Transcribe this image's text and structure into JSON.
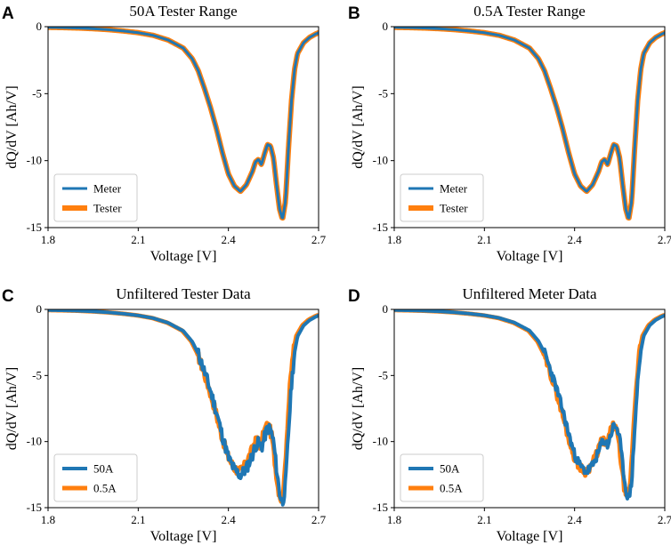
{
  "colors": {
    "blue": "#1f77b4",
    "orange": "#ff7f0e"
  },
  "chart_data": [
    {
      "panel": "A",
      "type": "line",
      "title": "50A Tester Range",
      "xlabel": "Voltage [V]",
      "ylabel": "dQ/dV [Ah/V]",
      "xlim": [
        1.8,
        2.7
      ],
      "ylim": [
        -15,
        0
      ],
      "xticks": [
        "1.8",
        "2.1",
        "2.4",
        "2.7"
      ],
      "yticks": [
        "0",
        "-5",
        "-10",
        "-15"
      ],
      "legend": {
        "position": "lower-left",
        "entries": [
          "Meter",
          "Tester"
        ]
      },
      "series": [
        {
          "name": "Meter",
          "color": "blue",
          "lw": 3,
          "noise": 0,
          "seed": 1,
          "shift": 0,
          "scale": 1
        },
        {
          "name": "Tester",
          "color": "orange",
          "lw": 6,
          "noise": 0,
          "seed": 2,
          "shift": 0,
          "scale": 1
        }
      ],
      "draw_order": [
        1,
        0
      ]
    },
    {
      "panel": "B",
      "type": "line",
      "title": "0.5A Tester Range",
      "xlabel": "Voltage [V]",
      "ylabel": "dQ/dV [Ah/V]",
      "xlim": [
        1.8,
        2.7
      ],
      "ylim": [
        -15,
        0
      ],
      "xticks": [
        "1.8",
        "2.1",
        "2.4",
        "2.7"
      ],
      "yticks": [
        "0",
        "-5",
        "-10",
        "-15"
      ],
      "legend": {
        "position": "lower-left",
        "entries": [
          "Meter",
          "Tester"
        ]
      },
      "series": [
        {
          "name": "Meter",
          "color": "blue",
          "lw": 3,
          "noise": 0,
          "seed": 3,
          "shift": 0,
          "scale": 1
        },
        {
          "name": "Tester",
          "color": "orange",
          "lw": 6,
          "noise": 0,
          "seed": 4,
          "shift": 0,
          "scale": 1
        }
      ],
      "draw_order": [
        1,
        0
      ]
    },
    {
      "panel": "C",
      "type": "line",
      "title": "Unfiltered Tester Data",
      "xlabel": "Voltage [V]",
      "ylabel": "dQ/dV [Ah/V]",
      "xlim": [
        1.8,
        2.7
      ],
      "ylim": [
        -15,
        0
      ],
      "xticks": [
        "1.8",
        "2.1",
        "2.4",
        "2.7"
      ],
      "yticks": [
        "0",
        "-5",
        "-10",
        "-15"
      ],
      "legend": {
        "position": "lower-left",
        "entries": [
          "50A",
          "0.5A"
        ]
      },
      "series": [
        {
          "name": "50A",
          "color": "blue",
          "lw": 4,
          "noise": 0.45,
          "seed": 11,
          "shift": 0,
          "scale": 1.02
        },
        {
          "name": "0.5A",
          "color": "orange",
          "lw": 5,
          "noise": 0.35,
          "seed": 17,
          "shift": -0.004,
          "scale": 1.0
        }
      ],
      "draw_order": [
        1,
        0
      ]
    },
    {
      "panel": "D",
      "type": "line",
      "title": "Unfiltered Meter Data",
      "xlabel": "Voltage [V]",
      "ylabel": "dQ/dV [Ah/V]",
      "xlim": [
        1.8,
        2.7
      ],
      "ylim": [
        -15,
        0
      ],
      "xticks": [
        "1.8",
        "2.1",
        "2.4",
        "2.7"
      ],
      "yticks": [
        "0",
        "-5",
        "-10",
        "-15"
      ],
      "legend": {
        "position": "lower-left",
        "entries": [
          "50A",
          "0.5A"
        ]
      },
      "series": [
        {
          "name": "50A",
          "color": "blue",
          "lw": 4,
          "noise": 0.35,
          "seed": 23,
          "shift": 0,
          "scale": 1.0
        },
        {
          "name": "0.5A",
          "color": "orange",
          "lw": 5,
          "noise": 0.3,
          "seed": 29,
          "shift": -0.004,
          "scale": 1.0
        }
      ],
      "draw_order": [
        1,
        0
      ]
    }
  ],
  "curve_points": [
    [
      1.8,
      -0.05
    ],
    [
      1.85,
      -0.07
    ],
    [
      1.9,
      -0.1
    ],
    [
      1.95,
      -0.15
    ],
    [
      2.0,
      -0.22
    ],
    [
      2.05,
      -0.32
    ],
    [
      2.1,
      -0.45
    ],
    [
      2.15,
      -0.65
    ],
    [
      2.2,
      -1.0
    ],
    [
      2.25,
      -1.6
    ],
    [
      2.28,
      -2.4
    ],
    [
      2.3,
      -3.3
    ],
    [
      2.32,
      -4.6
    ],
    [
      2.34,
      -6.0
    ],
    [
      2.36,
      -7.6
    ],
    [
      2.38,
      -9.4
    ],
    [
      2.4,
      -11.0
    ],
    [
      2.42,
      -11.9
    ],
    [
      2.44,
      -12.3
    ],
    [
      2.46,
      -11.8
    ],
    [
      2.48,
      -10.8
    ],
    [
      2.49,
      -10.1
    ],
    [
      2.5,
      -9.9
    ],
    [
      2.51,
      -10.3
    ],
    [
      2.52,
      -9.5
    ],
    [
      2.53,
      -8.8
    ],
    [
      2.54,
      -8.9
    ],
    [
      2.55,
      -9.8
    ],
    [
      2.56,
      -11.8
    ],
    [
      2.57,
      -13.6
    ],
    [
      2.58,
      -14.4
    ],
    [
      2.59,
      -13.0
    ],
    [
      2.6,
      -9.0
    ],
    [
      2.61,
      -5.5
    ],
    [
      2.62,
      -3.2
    ],
    [
      2.63,
      -2.0
    ],
    [
      2.65,
      -1.2
    ],
    [
      2.67,
      -0.8
    ],
    [
      2.69,
      -0.55
    ],
    [
      2.7,
      -0.45
    ]
  ]
}
